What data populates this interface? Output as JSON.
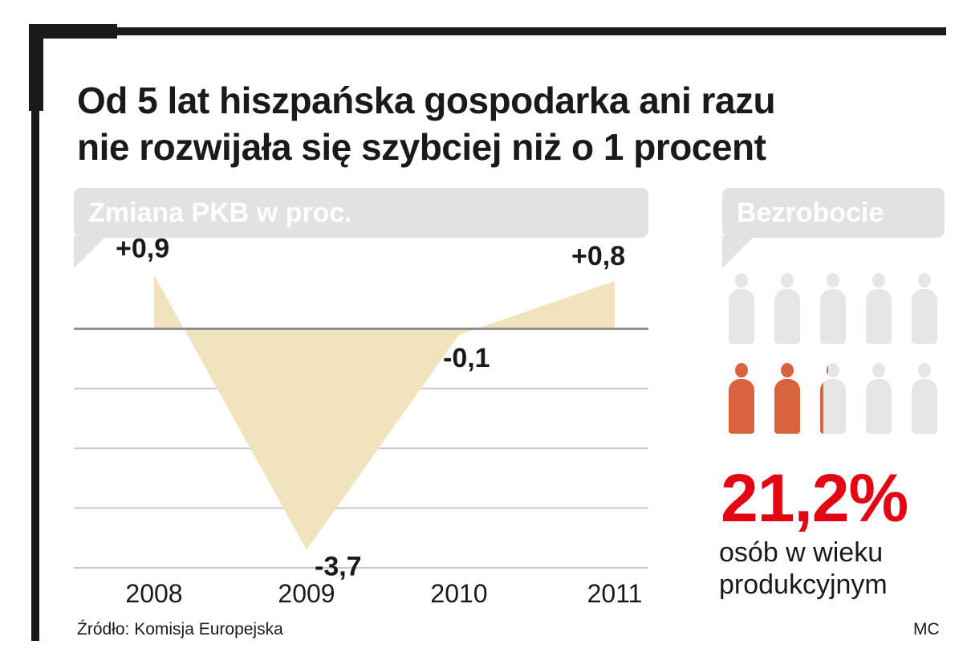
{
  "title_lines": [
    "Od 5 lat hiszpańska gospodarka ani razu",
    "nie rozwijała się szybciej niż o 1 procent"
  ],
  "pkb_label": "Zmiana PKB w proc.",
  "unemployment_label": "Bezrobocie",
  "unemployment_value": "21,2%",
  "unemployment_caption": [
    "osób w wieku",
    "produkcyjnym"
  ],
  "unemployment_icons": {
    "total": 10,
    "filled": 2.12
  },
  "source": "Źródło: Komisja Europejska",
  "author": "MC",
  "colors": {
    "area": "#f2e3bf",
    "gridline": "#c9c9c9",
    "zero_line": "#8c8c8c",
    "bubble": "#e2e2e2",
    "person_filled": "#d9633f",
    "person_empty": "#e6e6e6",
    "accent": "#e30613"
  },
  "chart_data": {
    "type": "area",
    "title": "Zmiana PKB w proc.",
    "categories": [
      "2008",
      "2009",
      "2010",
      "2011"
    ],
    "values": [
      0.9,
      -3.7,
      -0.1,
      0.8
    ],
    "value_labels": [
      "+0,9",
      "-3,7",
      "-0,1",
      "+0,8"
    ],
    "xlabel": "",
    "ylabel": "",
    "ylim": [
      -4,
      1
    ],
    "grid": true
  }
}
